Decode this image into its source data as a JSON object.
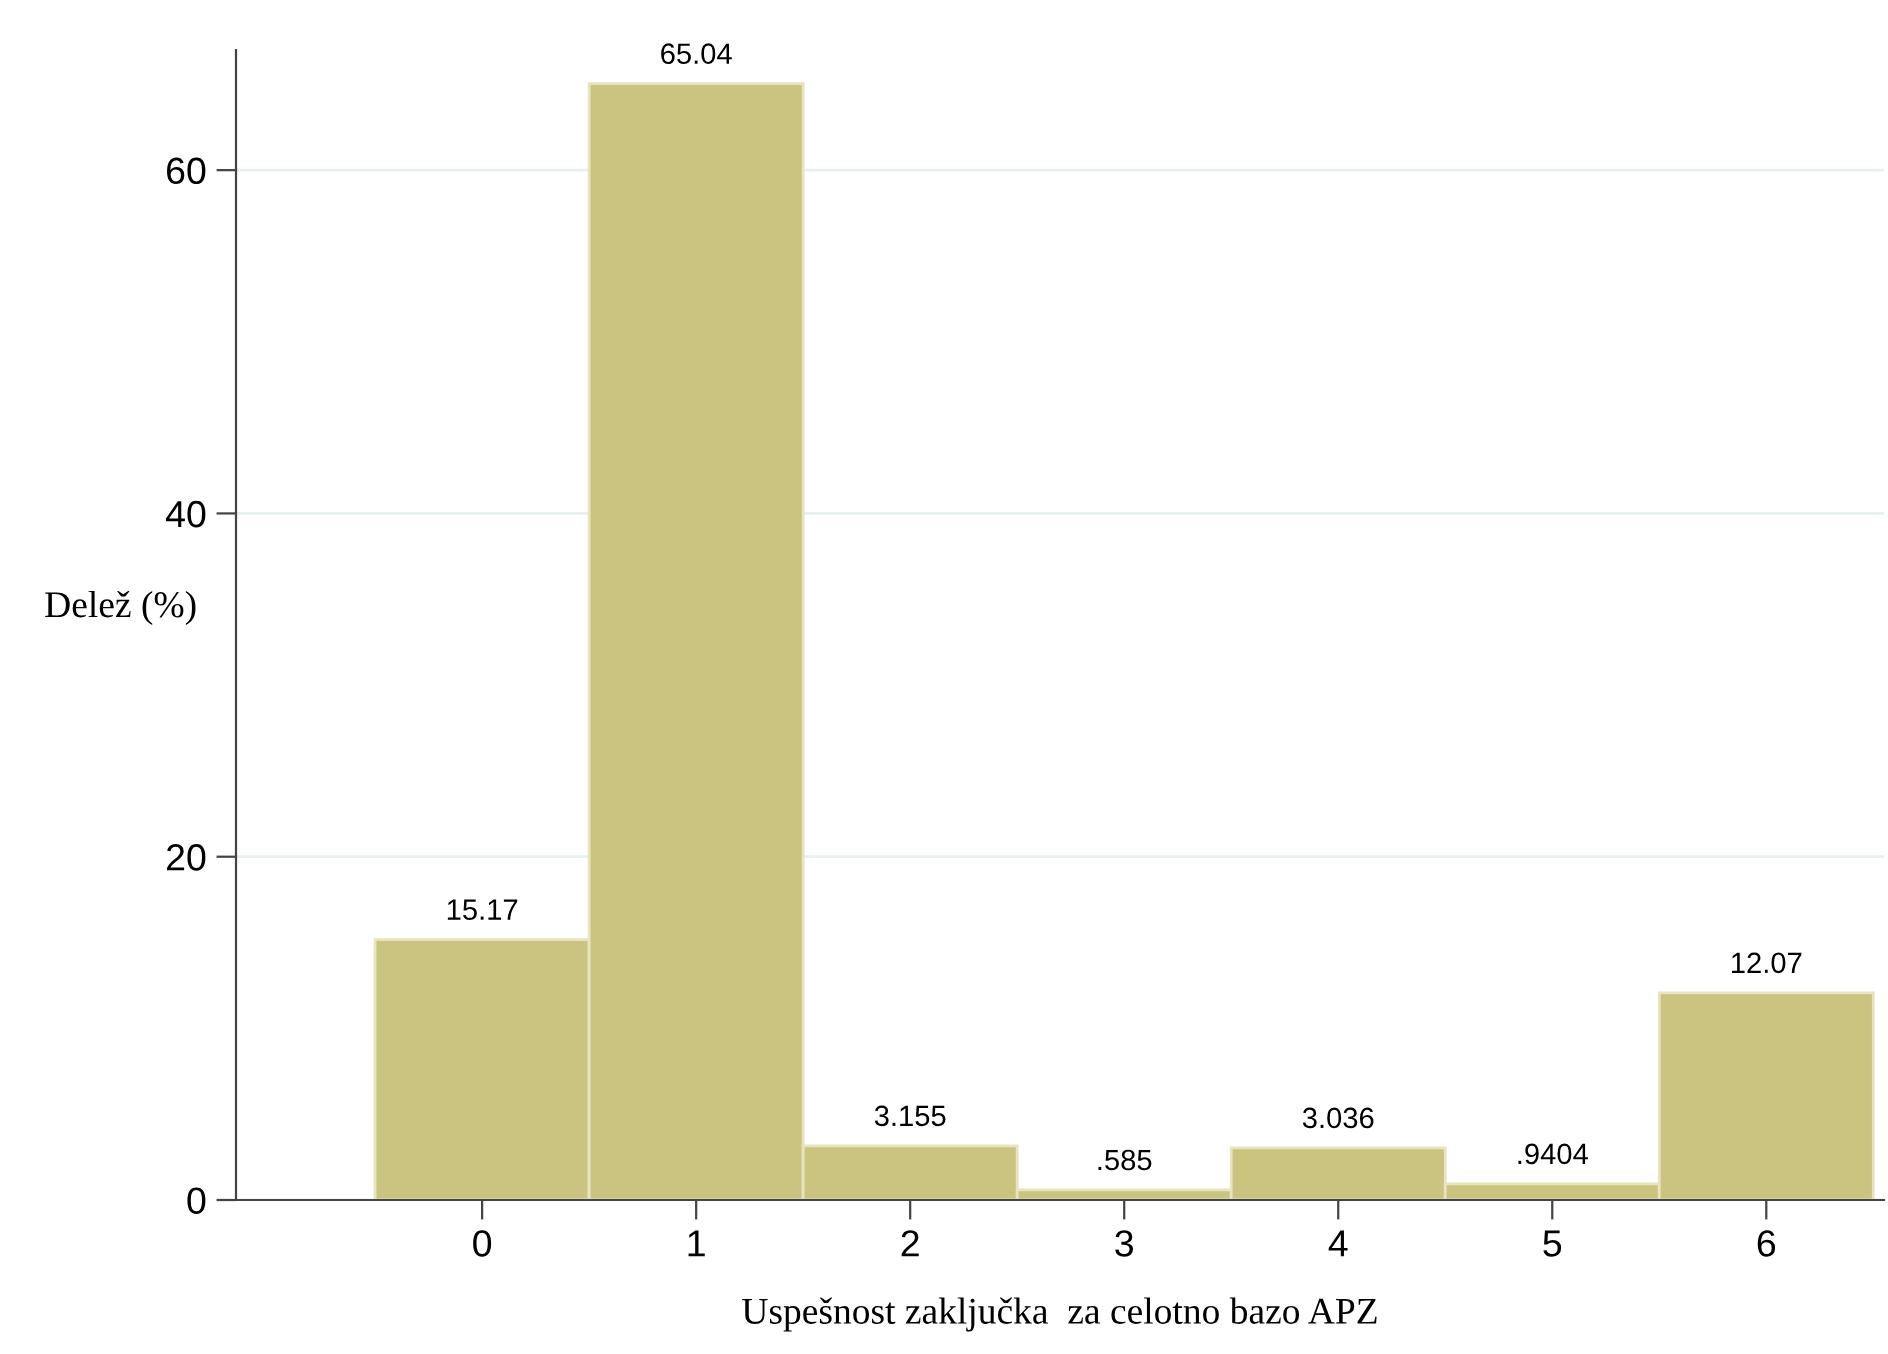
{
  "chart_data": {
    "type": "histogram",
    "xlabel": "Uspešnost zaključka  za celotno bazo APZ",
    "ylabel": "Delež (%)",
    "bins": [
      -0.5,
      0.5,
      1.5,
      2.5,
      3.5,
      4.5,
      5.5,
      6.5
    ],
    "values": [
      15.17,
      65.04,
      3.155,
      0.585,
      3.036,
      0.9404,
      12.07
    ],
    "value_labels": [
      "15.17",
      "65.04",
      "3.155",
      ".585",
      "3.036",
      ".9404",
      "12.07"
    ],
    "color": "#cbc380",
    "xlim": [
      -1.15,
      6.55
    ],
    "xticks": [
      0,
      1,
      2,
      3,
      4,
      5,
      6
    ],
    "ylim": [
      0,
      67
    ],
    "yticks": [
      0,
      20,
      40,
      60
    ],
    "grid": "y"
  }
}
